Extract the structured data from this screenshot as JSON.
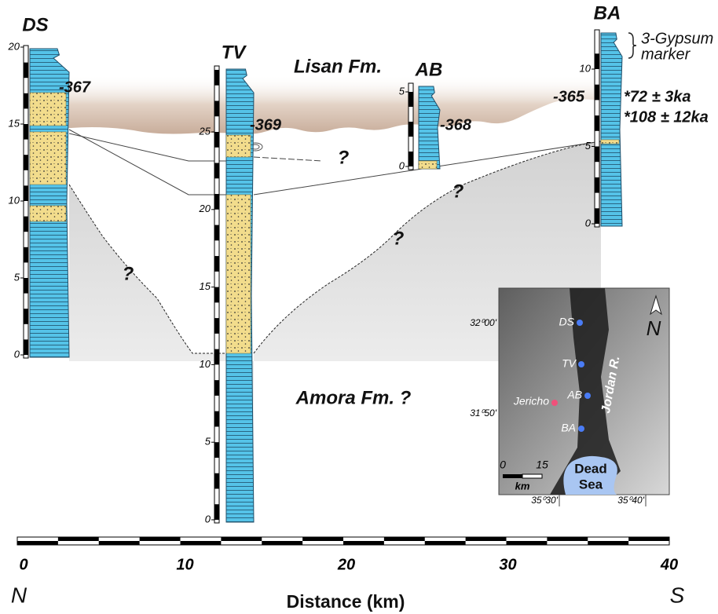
{
  "columns": [
    {
      "label": "DS",
      "ticks": [
        0,
        5,
        10,
        15,
        20
      ],
      "elevation": "-367"
    },
    {
      "label": "TV",
      "ticks": [
        0,
        5,
        10,
        15,
        20,
        25
      ],
      "elevation": "-369"
    },
    {
      "label": "AB",
      "ticks": [
        0,
        5
      ],
      "elevation": "-368"
    },
    {
      "label": "BA",
      "ticks": [
        0,
        5,
        10
      ],
      "elevation": "-365"
    }
  ],
  "formations": {
    "lisan": "Lisan Fm.",
    "amora": "Amora Fm. ?"
  },
  "unknown_marks": [
    "?",
    "?",
    "?",
    "?"
  ],
  "gypsum_marker": [
    "3-Gypsum",
    "marker"
  ],
  "ages": [
    "*72 ± 3ka",
    "*108 ± 12ka"
  ],
  "distance_axis": {
    "title": "Distance (km)",
    "ticks": [
      0,
      10,
      20,
      30,
      40
    ],
    "north": "N",
    "south": "S"
  },
  "map": {
    "sites": [
      "DS",
      "TV",
      "AB",
      "BA"
    ],
    "town": "Jericho",
    "river": "Jordan R.",
    "sea": [
      "Dead",
      "Sea"
    ],
    "north": "N",
    "lat": [
      "32⁰00'",
      "31⁰50'"
    ],
    "lon": [
      "35⁰30'",
      "35⁰40'"
    ],
    "scale": {
      "ticks": [
        0,
        15
      ],
      "unit": "km"
    }
  }
}
